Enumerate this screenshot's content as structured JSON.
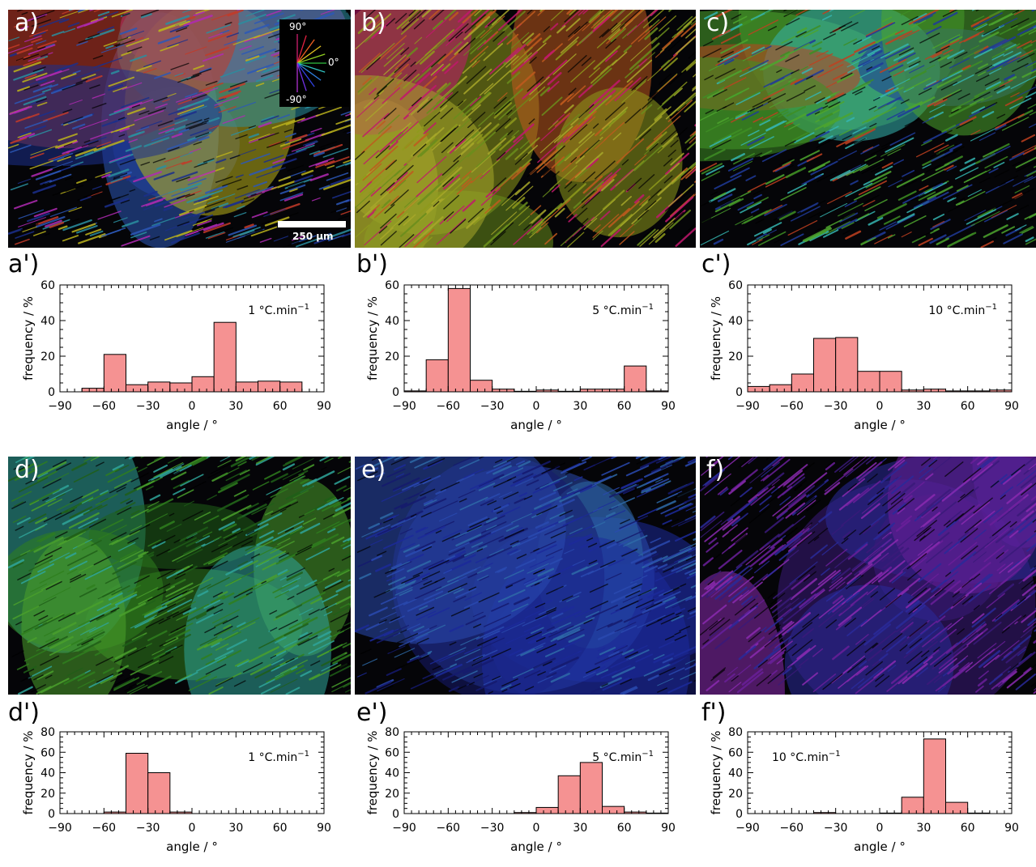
{
  "image_panels": [
    {
      "id": "a",
      "label": "a)",
      "colors": [
        "#1b2f8c",
        "#2c58b8",
        "#bcb31c",
        "#b12ab4",
        "#2a8fa0",
        "#c43a28"
      ]
    },
    {
      "id": "b",
      "label": "b)",
      "colors": [
        "#8f9b1c",
        "#a8a82a",
        "#c2176d",
        "#6a8e1c",
        "#c05a1e"
      ]
    },
    {
      "id": "c",
      "label": "c)",
      "colors": [
        "#3e8f24",
        "#4da52e",
        "#35b5b0",
        "#c04020",
        "#1f3a9a"
      ]
    },
    {
      "id": "d",
      "label": "d)",
      "colors": [
        "#2f7f1e",
        "#4aa02c",
        "#2fa59a",
        "#1f5f18"
      ]
    },
    {
      "id": "e",
      "label": "e)",
      "colors": [
        "#151a6e",
        "#1c2a9a",
        "#2a4ab0",
        "#2e6aa8"
      ]
    },
    {
      "id": "f",
      "label": "f)",
      "colors": [
        "#3a1a7a",
        "#6a1f9a",
        "#2a2a9a",
        "#8a2ab0"
      ]
    }
  ],
  "inset": {
    "compass_labels": [
      "90°",
      "0°",
      "-90°"
    ],
    "scale_bar_label": "250 µm"
  },
  "chart_data": [
    {
      "id": "a_prime",
      "label": "a')",
      "type": "bar",
      "annotation": "1 °C.min",
      "annotation_sup": "−1",
      "xlabel": "angle / °",
      "ylabel": "frequency / %",
      "xlim": [
        -90,
        90
      ],
      "ylim": [
        0,
        60
      ],
      "xticks": [
        -90,
        -60,
        -30,
        0,
        30,
        60,
        90
      ],
      "yticks": [
        0,
        20,
        40,
        60
      ],
      "bin_width": 15,
      "bin_start": -90,
      "values": [
        0,
        2,
        21,
        4,
        5.5,
        5,
        8.5,
        39,
        5.5,
        6,
        5.5,
        0
      ],
      "bar_color": "#f59292"
    },
    {
      "id": "b_prime",
      "label": "b')",
      "type": "bar",
      "annotation": "5 °C.min",
      "annotation_sup": "−1",
      "xlabel": "angle / °",
      "ylabel": "frequency / %",
      "xlim": [
        -90,
        90
      ],
      "ylim": [
        0,
        60
      ],
      "xticks": [
        -90,
        -60,
        -30,
        0,
        30,
        60,
        90
      ],
      "yticks": [
        0,
        20,
        40,
        60
      ],
      "bin_width": 15,
      "bin_start": -90,
      "values": [
        0.5,
        18,
        58,
        6.5,
        1.5,
        0.3,
        1,
        0.3,
        1.5,
        1.5,
        14.5,
        0.5
      ],
      "bar_color": "#f59292"
    },
    {
      "id": "c_prime",
      "label": "c')",
      "type": "bar",
      "annotation": "10 °C.min",
      "annotation_sup": "−1",
      "xlabel": "angle / °",
      "ylabel": "frequency / %",
      "xlim": [
        -90,
        90
      ],
      "ylim": [
        0,
        60
      ],
      "xticks": [
        -90,
        -60,
        -30,
        0,
        30,
        60,
        90
      ],
      "yticks": [
        0,
        20,
        40,
        60
      ],
      "bin_width": 15,
      "bin_start": -90,
      "values": [
        3,
        4,
        10,
        30,
        30.5,
        11.5,
        11.5,
        1,
        1.5,
        0.5,
        0.5,
        1
      ],
      "bar_color": "#f59292"
    },
    {
      "id": "d_prime",
      "label": "d')",
      "type": "bar",
      "annotation": "1 °C.min",
      "annotation_sup": "−1",
      "xlabel": "angle / °",
      "ylabel": "frequency / %",
      "xlim": [
        -90,
        90
      ],
      "ylim": [
        0,
        80
      ],
      "xticks": [
        -90,
        -60,
        -30,
        0,
        30,
        60,
        90
      ],
      "yticks": [
        0,
        20,
        40,
        60,
        80
      ],
      "bin_width": 15,
      "bin_start": -90,
      "values": [
        0,
        0,
        1.5,
        59,
        40,
        1.5,
        0,
        0,
        0,
        0,
        0,
        0
      ],
      "bar_color": "#f59292"
    },
    {
      "id": "e_prime",
      "label": "e')",
      "type": "bar",
      "annotation": "5 °C.min",
      "annotation_sup": "−1",
      "xlabel": "angle / °",
      "ylabel": "frequency / %",
      "xlim": [
        -90,
        90
      ],
      "ylim": [
        0,
        80
      ],
      "xticks": [
        -90,
        -60,
        -30,
        0,
        30,
        60,
        90
      ],
      "yticks": [
        0,
        20,
        40,
        60,
        80
      ],
      "bin_width": 15,
      "bin_start": -90,
      "values": [
        0,
        0,
        0,
        0,
        0,
        1,
        6,
        37,
        50,
        7,
        1.5,
        0.5
      ],
      "bar_color": "#f59292"
    },
    {
      "id": "f_prime",
      "label": "f')",
      "type": "bar",
      "annotation": "10 °C.min",
      "annotation_sup": "−1",
      "xlabel": "angle / °",
      "ylabel": "frequency / %",
      "xlim": [
        -90,
        90
      ],
      "ylim": [
        0,
        80
      ],
      "xticks": [
        -90,
        -60,
        -30,
        0,
        30,
        60,
        90
      ],
      "yticks": [
        0,
        20,
        40,
        60,
        80
      ],
      "bin_width": 15,
      "bin_start": -90,
      "values": [
        0,
        0,
        0,
        1,
        0,
        0,
        0.5,
        16,
        73,
        11,
        0.5,
        0
      ],
      "bar_color": "#f59292",
      "annotation_left": true
    }
  ]
}
